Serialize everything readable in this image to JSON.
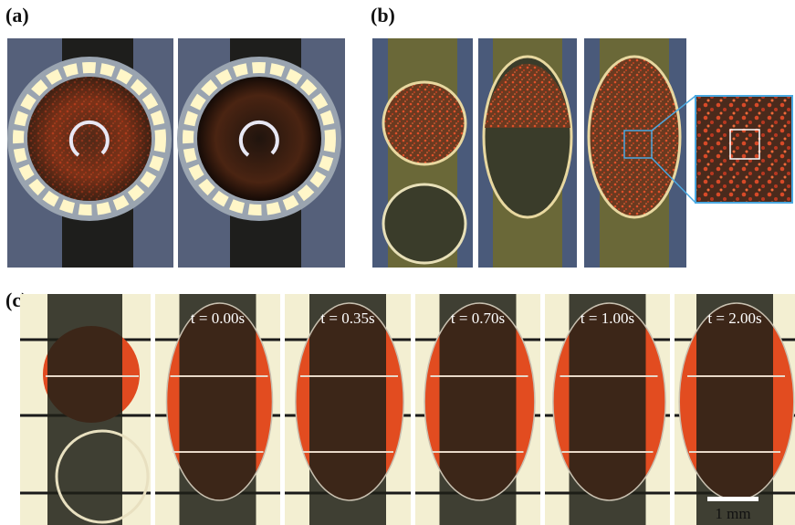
{
  "labels": {
    "a": "(a)",
    "b": "(b)",
    "c": "(c)"
  },
  "timestamps": [
    "t = 0.00s",
    "t = 0.35s",
    "t = 0.70s",
    "t = 1.00s",
    "t = 2.00s"
  ],
  "scale_bar": "1 mm"
}
